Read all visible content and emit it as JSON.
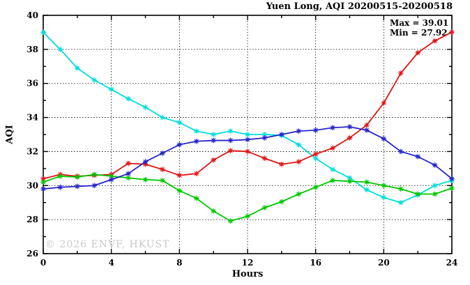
{
  "chart": {
    "watermark": "© 2026 ENVF, HKUST"
  },
  "chart_data": {
    "type": "line",
    "title": "Yuen Long, AQI 20200515-20200518",
    "xlabel": "Hours",
    "ylabel": "AQI",
    "x_axis": {
      "label": "Hours",
      "min": 0,
      "max": 24,
      "major_ticks": [
        0,
        4,
        8,
        12,
        16,
        20,
        24
      ],
      "minor_step": 2
    },
    "y_axis": {
      "label": "AQI",
      "min": 26,
      "max": 40,
      "major_ticks": [
        26,
        28,
        30,
        32,
        34,
        36,
        38,
        40
      ],
      "minor_step": 1
    },
    "grid": true,
    "legend_position": "none",
    "x": [
      0,
      1,
      2,
      3,
      4,
      5,
      6,
      7,
      8,
      9,
      10,
      11,
      12,
      13,
      14,
      15,
      16,
      17,
      18,
      19,
      20,
      21,
      22,
      23,
      24
    ],
    "series": [
      {
        "name": "cyan-series",
        "color": "#00dede",
        "values": [
          39.0,
          38.0,
          36.9,
          36.2,
          35.65,
          35.1,
          34.6,
          34.0,
          33.7,
          33.2,
          33.0,
          33.2,
          33.0,
          33.0,
          32.95,
          32.4,
          31.6,
          30.95,
          30.45,
          29.75,
          29.3,
          29.0,
          29.45,
          30.0,
          30.3
        ]
      },
      {
        "name": "red-series",
        "color": "#e01414",
        "values": [
          30.4,
          30.65,
          30.55,
          30.6,
          30.65,
          31.3,
          31.25,
          30.95,
          30.6,
          30.7,
          31.5,
          32.05,
          32.0,
          31.6,
          31.25,
          31.4,
          31.85,
          32.2,
          32.8,
          33.55,
          34.85,
          36.6,
          37.8,
          38.5,
          39.01
        ]
      },
      {
        "name": "green-series",
        "color": "#00c800",
        "values": [
          30.2,
          30.55,
          30.5,
          30.65,
          30.55,
          30.45,
          30.35,
          30.3,
          29.7,
          29.25,
          28.5,
          27.92,
          28.2,
          28.7,
          29.05,
          29.5,
          29.9,
          30.3,
          30.25,
          30.2,
          30.0,
          29.8,
          29.5,
          29.5,
          29.85
        ]
      },
      {
        "name": "blue-series",
        "color": "#2424cc",
        "values": [
          29.8,
          29.9,
          29.95,
          30.0,
          30.35,
          30.7,
          31.4,
          31.9,
          32.4,
          32.6,
          32.65,
          32.65,
          32.7,
          32.8,
          33.0,
          33.2,
          33.25,
          33.4,
          33.45,
          33.25,
          32.75,
          32.0,
          31.7,
          31.2,
          30.4
        ]
      }
    ],
    "annotations": {
      "max_label": "Max = 39.01",
      "min_label": "Min = 27.92"
    }
  }
}
